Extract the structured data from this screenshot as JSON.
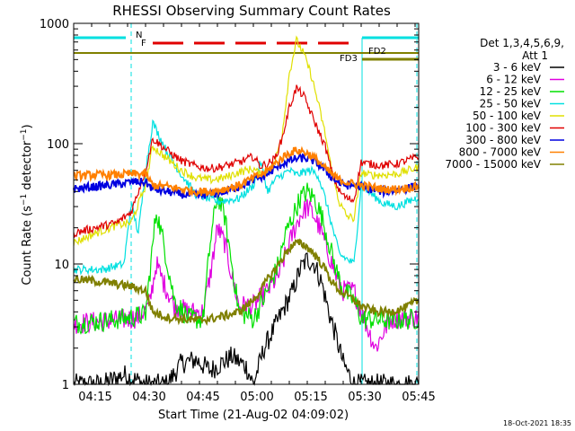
{
  "chart_data": {
    "type": "line",
    "title": "RHESSI Observing Summary Count Rates",
    "xlabel": "Start Time (21-Aug-02 04:09:02)",
    "ylabel": "Count Rate (s⁻¹ detector⁻¹)",
    "ylabel_main": "Count Rate (s",
    "ylabel_sup1": "−1",
    "ylabel_mid": " detector",
    "ylabel_sup2": "−1",
    "ylabel_end": ")",
    "y_scale": "log",
    "ylim": [
      1,
      1000
    ],
    "xlim": [
      0,
      96
    ],
    "x_ticks": [
      {
        "x": 6,
        "label": "04:15"
      },
      {
        "x": 21,
        "label": "04:30"
      },
      {
        "x": 36,
        "label": "04:45"
      },
      {
        "x": 51,
        "label": "05:00"
      },
      {
        "x": 66,
        "label": "05:15"
      },
      {
        "x": 81,
        "label": "05:30"
      },
      {
        "x": 96,
        "label": "05:45"
      }
    ],
    "y_ticks": [
      {
        "y": 1,
        "label": "1"
      },
      {
        "y": 10,
        "label": "10"
      },
      {
        "y": 100,
        "label": "100"
      },
      {
        "y": 1000,
        "label": "1000"
      }
    ],
    "legend_header": [
      "Det 1,3,4,5,6,9,",
      "Att 1"
    ],
    "legend_placement": "right",
    "series": [
      {
        "name": "3 - 6 keV",
        "color": "#000000",
        "points": [
          [
            0,
            1
          ],
          [
            8,
            1
          ],
          [
            14,
            1.2
          ],
          [
            20,
            1
          ],
          [
            26,
            1
          ],
          [
            30,
            1.5
          ],
          [
            34,
            1.6
          ],
          [
            38,
            1.3
          ],
          [
            44,
            1.7
          ],
          [
            48,
            1.4
          ],
          [
            50,
            1
          ],
          [
            53,
            2
          ],
          [
            56,
            3
          ],
          [
            58,
            4
          ],
          [
            61,
            6
          ],
          [
            63,
            9
          ],
          [
            65,
            11
          ],
          [
            67,
            10
          ],
          [
            69,
            7
          ],
          [
            71,
            4
          ],
          [
            73,
            2.5
          ],
          [
            75,
            1.5
          ],
          [
            78,
            1
          ],
          [
            96,
            1
          ]
        ]
      },
      {
        "name": "6 - 12 keV",
        "color": "#e000e0",
        "points": [
          [
            0,
            3.2
          ],
          [
            12,
            3.4
          ],
          [
            18,
            3.6
          ],
          [
            21,
            4.5
          ],
          [
            23,
            10
          ],
          [
            25,
            7
          ],
          [
            28,
            4.5
          ],
          [
            32,
            4
          ],
          [
            36,
            4
          ],
          [
            38,
            8
          ],
          [
            40,
            20
          ],
          [
            42,
            15
          ],
          [
            44,
            8
          ],
          [
            46,
            4.5
          ],
          [
            50,
            4.5
          ],
          [
            54,
            6
          ],
          [
            57,
            8
          ],
          [
            59,
            12
          ],
          [
            61,
            18
          ],
          [
            63,
            25
          ],
          [
            65,
            30
          ],
          [
            67,
            25
          ],
          [
            69,
            18
          ],
          [
            71,
            12
          ],
          [
            73,
            8
          ],
          [
            75,
            6
          ],
          [
            78,
            6
          ],
          [
            80,
            4
          ],
          [
            84,
            2
          ],
          [
            88,
            3.5
          ],
          [
            96,
            3.6
          ]
        ]
      },
      {
        "name": "12 - 25 keV",
        "color": "#00e000",
        "points": [
          [
            0,
            3.2
          ],
          [
            10,
            3.4
          ],
          [
            16,
            3.6
          ],
          [
            20,
            3.8
          ],
          [
            23,
            28
          ],
          [
            25,
            15
          ],
          [
            28,
            5
          ],
          [
            32,
            3.5
          ],
          [
            36,
            3.5
          ],
          [
            38,
            15
          ],
          [
            40,
            38
          ],
          [
            42,
            25
          ],
          [
            44,
            10
          ],
          [
            46,
            4
          ],
          [
            50,
            3.5
          ],
          [
            54,
            6
          ],
          [
            57,
            10
          ],
          [
            59,
            18
          ],
          [
            61,
            25
          ],
          [
            63,
            35
          ],
          [
            65,
            40
          ],
          [
            67,
            35
          ],
          [
            69,
            25
          ],
          [
            71,
            15
          ],
          [
            73,
            9
          ],
          [
            75,
            6
          ],
          [
            78,
            5
          ],
          [
            80,
            3.5
          ],
          [
            88,
            3.4
          ],
          [
            96,
            3.5
          ]
        ]
      },
      {
        "name": "25 - 50 keV",
        "color": "#00e0e0",
        "points": [
          [
            0,
            9
          ],
          [
            8,
            9
          ],
          [
            14,
            10
          ],
          [
            16,
            32
          ],
          [
            18,
            18
          ],
          [
            20,
            60
          ],
          [
            22,
            150
          ],
          [
            26,
            85
          ],
          [
            30,
            55
          ],
          [
            34,
            38
          ],
          [
            40,
            33
          ],
          [
            46,
            35
          ],
          [
            50,
            45
          ],
          [
            52,
            70
          ],
          [
            54,
            40
          ],
          [
            56,
            50
          ],
          [
            58,
            55
          ],
          [
            60,
            60
          ],
          [
            62,
            55
          ],
          [
            64,
            58
          ],
          [
            66,
            60
          ],
          [
            68,
            55
          ],
          [
            70,
            35
          ],
          [
            72,
            20
          ],
          [
            74,
            12
          ],
          [
            76,
            11
          ],
          [
            78,
            10
          ],
          [
            80,
            45
          ],
          [
            82,
            40
          ],
          [
            86,
            32
          ],
          [
            90,
            30
          ],
          [
            96,
            36
          ]
        ]
      },
      {
        "name": "50 - 100 keV",
        "color": "#e0e000",
        "points": [
          [
            0,
            15
          ],
          [
            6,
            18
          ],
          [
            12,
            21
          ],
          [
            16,
            22
          ],
          [
            20,
            45
          ],
          [
            22,
            95
          ],
          [
            26,
            75
          ],
          [
            30,
            60
          ],
          [
            34,
            52
          ],
          [
            38,
            50
          ],
          [
            42,
            52
          ],
          [
            46,
            58
          ],
          [
            50,
            62
          ],
          [
            52,
            55
          ],
          [
            54,
            60
          ],
          [
            56,
            70
          ],
          [
            58,
            120
          ],
          [
            60,
            380
          ],
          [
            62,
            720
          ],
          [
            64,
            560
          ],
          [
            66,
            380
          ],
          [
            68,
            220
          ],
          [
            70,
            120
          ],
          [
            72,
            55
          ],
          [
            74,
            32
          ],
          [
            76,
            25
          ],
          [
            78,
            24
          ],
          [
            80,
            58
          ],
          [
            82,
            55
          ],
          [
            86,
            55
          ],
          [
            90,
            56
          ],
          [
            96,
            64
          ]
        ]
      },
      {
        "name": "100 - 300 keV",
        "color": "#e00000",
        "points": [
          [
            0,
            18
          ],
          [
            6,
            20
          ],
          [
            12,
            22
          ],
          [
            16,
            27
          ],
          [
            20,
            60
          ],
          [
            22,
            110
          ],
          [
            26,
            88
          ],
          [
            30,
            72
          ],
          [
            34,
            65
          ],
          [
            38,
            62
          ],
          [
            42,
            65
          ],
          [
            46,
            70
          ],
          [
            50,
            78
          ],
          [
            52,
            65
          ],
          [
            54,
            68
          ],
          [
            56,
            75
          ],
          [
            58,
            110
          ],
          [
            60,
            200
          ],
          [
            62,
            290
          ],
          [
            64,
            250
          ],
          [
            66,
            180
          ],
          [
            68,
            130
          ],
          [
            70,
            95
          ],
          [
            72,
            55
          ],
          [
            74,
            40
          ],
          [
            76,
            35
          ],
          [
            78,
            34
          ],
          [
            80,
            70
          ],
          [
            82,
            68
          ],
          [
            86,
            66
          ],
          [
            90,
            68
          ],
          [
            96,
            78
          ]
        ]
      },
      {
        "name": "300 - 800 keV",
        "color": "#0000e0",
        "points": [
          [
            0,
            42
          ],
          [
            6,
            44
          ],
          [
            12,
            46
          ],
          [
            16,
            48
          ],
          [
            20,
            48
          ],
          [
            22,
            42
          ],
          [
            26,
            40
          ],
          [
            30,
            38
          ],
          [
            34,
            37
          ],
          [
            38,
            38
          ],
          [
            42,
            40
          ],
          [
            46,
            44
          ],
          [
            50,
            50
          ],
          [
            52,
            52
          ],
          [
            54,
            56
          ],
          [
            56,
            62
          ],
          [
            58,
            68
          ],
          [
            60,
            72
          ],
          [
            62,
            75
          ],
          [
            64,
            76
          ],
          [
            66,
            74
          ],
          [
            68,
            68
          ],
          [
            70,
            60
          ],
          [
            72,
            52
          ],
          [
            74,
            47
          ],
          [
            76,
            45
          ],
          [
            78,
            45
          ],
          [
            80,
            44
          ],
          [
            82,
            42
          ],
          [
            86,
            40
          ],
          [
            90,
            41
          ],
          [
            96,
            45
          ]
        ]
      },
      {
        "name": "800 - 7000 keV",
        "color": "#ff8000",
        "points": [
          [
            0,
            54
          ],
          [
            6,
            55
          ],
          [
            12,
            55
          ],
          [
            16,
            56
          ],
          [
            20,
            56
          ],
          [
            22,
            45
          ],
          [
            26,
            44
          ],
          [
            30,
            42
          ],
          [
            34,
            40
          ],
          [
            38,
            40
          ],
          [
            42,
            42
          ],
          [
            46,
            45
          ],
          [
            50,
            52
          ],
          [
            52,
            55
          ],
          [
            54,
            60
          ],
          [
            56,
            68
          ],
          [
            58,
            76
          ],
          [
            60,
            84
          ],
          [
            62,
            88
          ],
          [
            64,
            86
          ],
          [
            66,
            80
          ],
          [
            68,
            72
          ],
          [
            70,
            62
          ],
          [
            72,
            55
          ],
          [
            74,
            50
          ],
          [
            76,
            48
          ],
          [
            78,
            46
          ],
          [
            80,
            45
          ],
          [
            82,
            44
          ],
          [
            86,
            42
          ],
          [
            90,
            42
          ],
          [
            96,
            44
          ]
        ]
      },
      {
        "name": "7000 - 15000 keV",
        "color": "#808000",
        "points": [
          [
            0,
            7.5
          ],
          [
            6,
            7.2
          ],
          [
            12,
            6.8
          ],
          [
            16,
            6.5
          ],
          [
            20,
            6
          ],
          [
            22,
            4
          ],
          [
            26,
            3.6
          ],
          [
            30,
            3.5
          ],
          [
            34,
            3.4
          ],
          [
            38,
            3.5
          ],
          [
            42,
            3.7
          ],
          [
            46,
            4
          ],
          [
            50,
            5
          ],
          [
            52,
            6
          ],
          [
            54,
            7.5
          ],
          [
            56,
            9
          ],
          [
            58,
            11
          ],
          [
            60,
            13.5
          ],
          [
            62,
            15
          ],
          [
            64,
            14.5
          ],
          [
            66,
            13
          ],
          [
            68,
            11
          ],
          [
            70,
            9
          ],
          [
            72,
            7
          ],
          [
            74,
            6
          ],
          [
            76,
            5.5
          ],
          [
            78,
            5
          ],
          [
            80,
            4.5
          ],
          [
            84,
            4
          ],
          [
            88,
            4
          ],
          [
            92,
            4.3
          ],
          [
            96,
            5
          ]
        ]
      }
    ],
    "annotations": {
      "flag_N": "N",
      "flag_F": "F",
      "flag_FD2": "FD2",
      "flag_FD3": "FD3"
    },
    "footer": "18-Oct-2021 18:35"
  }
}
